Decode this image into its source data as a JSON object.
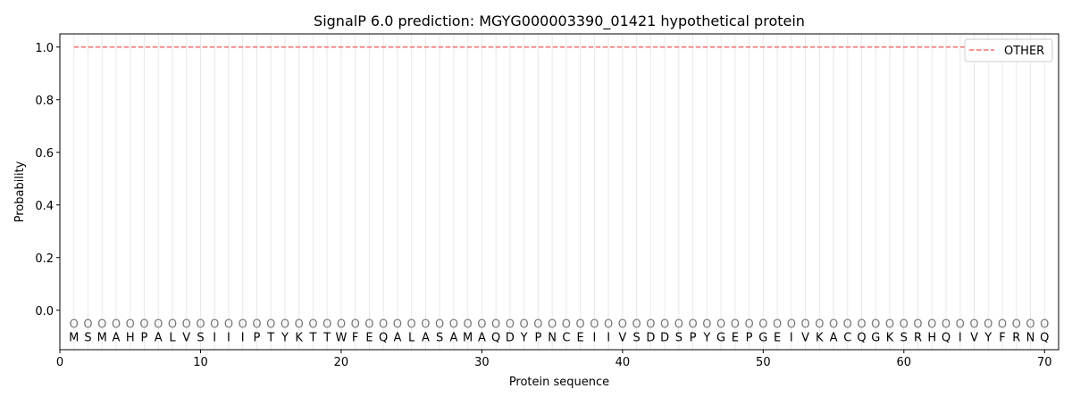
{
  "chart_data": {
    "type": "line",
    "title": "SignalP 6.0 prediction: MGYG000003390_01421 hypothetical protein",
    "xlabel": "Protein sequence",
    "ylabel": "Probability",
    "xlim": [
      0,
      71
    ],
    "ylim": [
      -0.15,
      1.05
    ],
    "xticks": [
      0,
      10,
      20,
      30,
      40,
      50,
      60,
      70
    ],
    "yticks": [
      0.0,
      0.2,
      0.4,
      0.6,
      0.8,
      1.0
    ],
    "ytick_labels": [
      "0.0",
      "0.2",
      "0.4",
      "0.6",
      "0.8",
      "1.0"
    ],
    "grid": "vertical lines at each residue",
    "legend_position": "top-right",
    "sequence": [
      "M",
      "S",
      "M",
      "A",
      "H",
      "P",
      "A",
      "L",
      "V",
      "S",
      "I",
      "I",
      "I",
      "P",
      "T",
      "Y",
      "K",
      "T",
      "T",
      "W",
      "F",
      "E",
      "Q",
      "A",
      "L",
      "A",
      "S",
      "A",
      "M",
      "A",
      "Q",
      "D",
      "Y",
      "P",
      "N",
      "C",
      "E",
      "I",
      "I",
      "V",
      "S",
      "D",
      "D",
      "S",
      "P",
      "Y",
      "G",
      "E",
      "P",
      "G",
      "E",
      "I",
      "V",
      "K",
      "A",
      "C",
      "Q",
      "G",
      "K",
      "S",
      "R",
      "H",
      "Q",
      "I",
      "V",
      "Y",
      "F",
      "R",
      "N",
      "Q"
    ],
    "predicted_labels": "OOOOOOOOOOOOOOOOOOOOOOOOOOOOOOOOOOOOOOOOOOOOOOOOOOOOOOOOOOOOOOOOOOOOOO",
    "series": [
      {
        "name": "OTHER",
        "color": "#f07070",
        "style": "dashed",
        "x_start": 1,
        "x_end": 70,
        "value": 1.0
      }
    ]
  }
}
